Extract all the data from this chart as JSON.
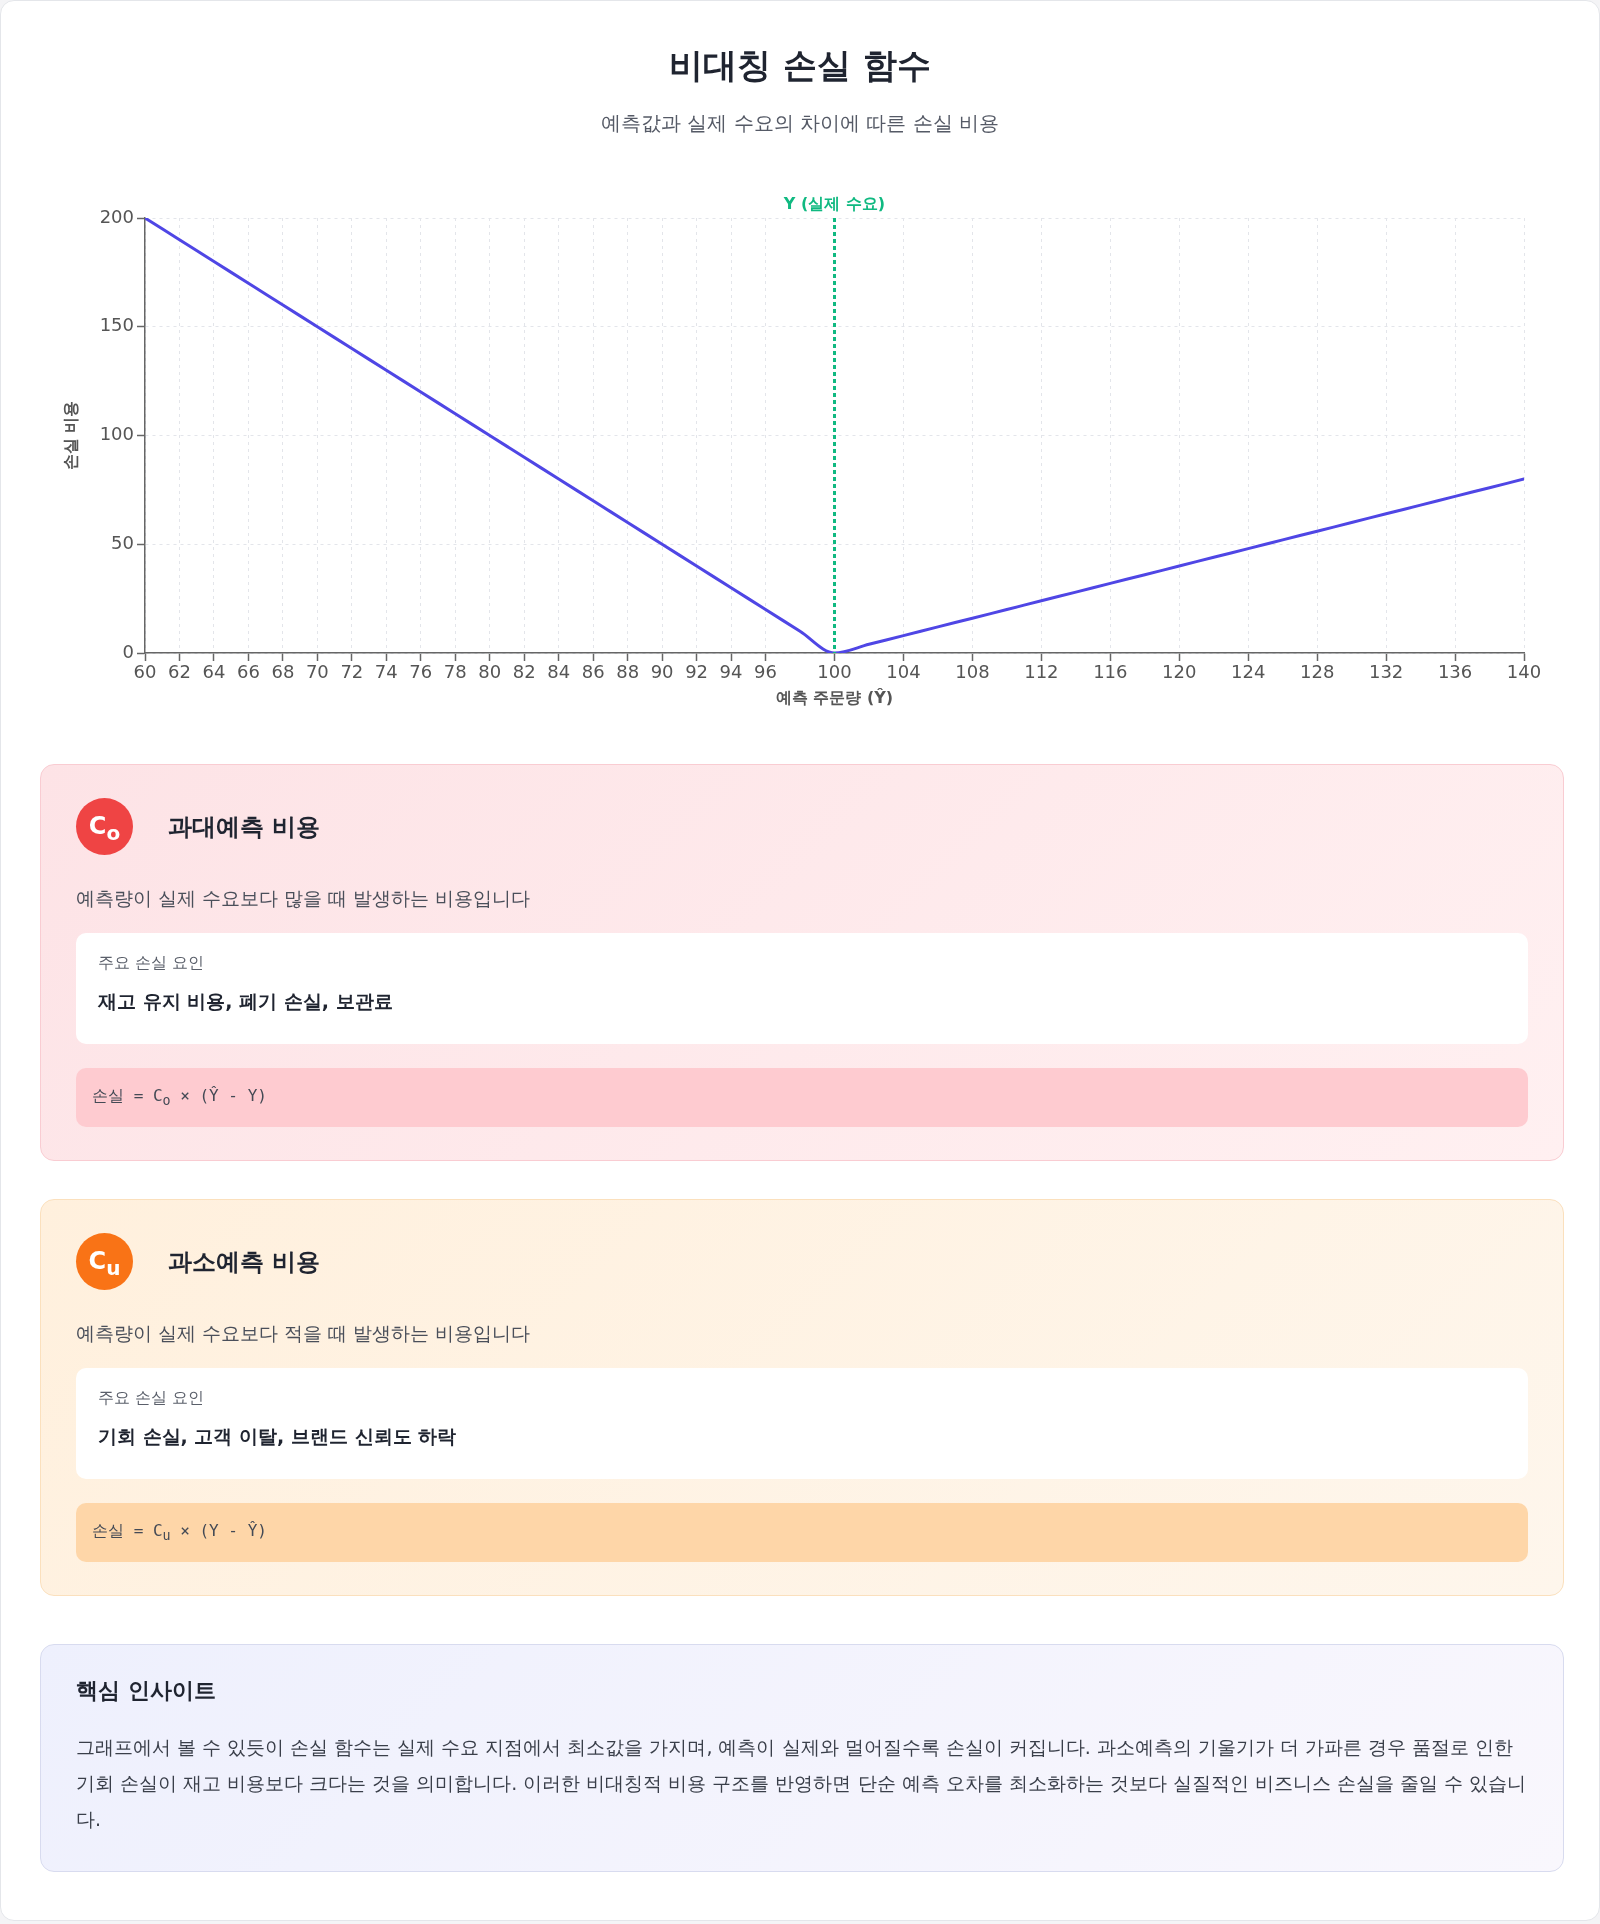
{
  "chart_data": [
    {
      "type": "line",
      "title": "비대칭 손실 함수",
      "subtitle": "예측값과 실제 수요의 차이에 따른 손실 비용",
      "xlabel": "예측 주문량 (Ŷ)",
      "ylabel": "손실 비용",
      "x": [
        60,
        62,
        64,
        66,
        68,
        70,
        72,
        74,
        76,
        78,
        80,
        82,
        84,
        86,
        88,
        90,
        92,
        94,
        96,
        98,
        100,
        102,
        104,
        106,
        108,
        110,
        112,
        114,
        116,
        118,
        120,
        122,
        124,
        126,
        128,
        130,
        132,
        134,
        136,
        138,
        140
      ],
      "series": [
        {
          "color": "#4f46e5",
          "values": [
            200,
            190,
            180,
            170,
            160,
            150,
            140,
            130,
            120,
            110,
            100,
            90,
            80,
            70,
            60,
            50,
            40,
            30,
            20,
            10,
            0,
            4,
            8,
            12,
            16,
            20,
            24,
            28,
            32,
            36,
            40,
            44,
            48,
            52,
            56,
            60,
            64,
            68,
            72,
            76,
            80
          ]
        }
      ],
      "xlim": [
        60,
        140
      ],
      "ylim": [
        0,
        200
      ],
      "xticks": [
        60,
        62,
        64,
        66,
        68,
        70,
        72,
        74,
        76,
        78,
        80,
        82,
        84,
        86,
        88,
        90,
        92,
        94,
        96,
        100,
        104,
        108,
        112,
        116,
        120,
        124,
        128,
        132,
        136,
        140
      ],
      "yticks": [
        0,
        50,
        100,
        150,
        200
      ],
      "grid": true,
      "marker": "none",
      "ref_lines": [
        {
          "axis": "x",
          "value": 100,
          "label": "Y (실제 수요)",
          "color": "#10b981",
          "line_style": "dashed"
        }
      ]
    },
    {
      "type": "other",
      "title": "과대예측 비용",
      "subtitle": "예측량이 실제 수요보다 많을 때 발생하는 비용입니다",
      "annotations": [
        "C$_{o}$",
        "주요 손실 요인",
        "재고 유지 비용, 폐기 손실, 보관료",
        "손실 = C$_{o}$ × (Ŷ - Y)"
      ]
    },
    {
      "type": "other",
      "title": "과소예측 비용",
      "subtitle": "예측량이 실제 수요보다 적을 때 발생하는 비용입니다",
      "annotations": [
        "C$_{u}$",
        "주요 손실 요인",
        "기회 손실, 고객 이탈, 브랜드 신뢰도 하락",
        "손실 = C$_{u}$ × (Y - Ŷ)"
      ]
    },
    {
      "type": "other",
      "title": "핵심 인사이트",
      "annotations": [
        "그래프에서 볼 수 있듯이 손실 함수는 실제 수요 지점에서 최소값을 가지며, 예측이 실제와 멀어질수록 손실이 커집니다. 과소예측의 기울기가 더 가파른 경우 품절로 인한 기회 손실이 재고 비용보다 크다는 것을 의미합니다. 이러한 비대칭적 비용 구조를 반영하면 단순 예측 오차를 최소화하는 것보다 실질적인 비즈니스 손실을 줄일 수 있습니다."
      ]
    }
  ]
}
